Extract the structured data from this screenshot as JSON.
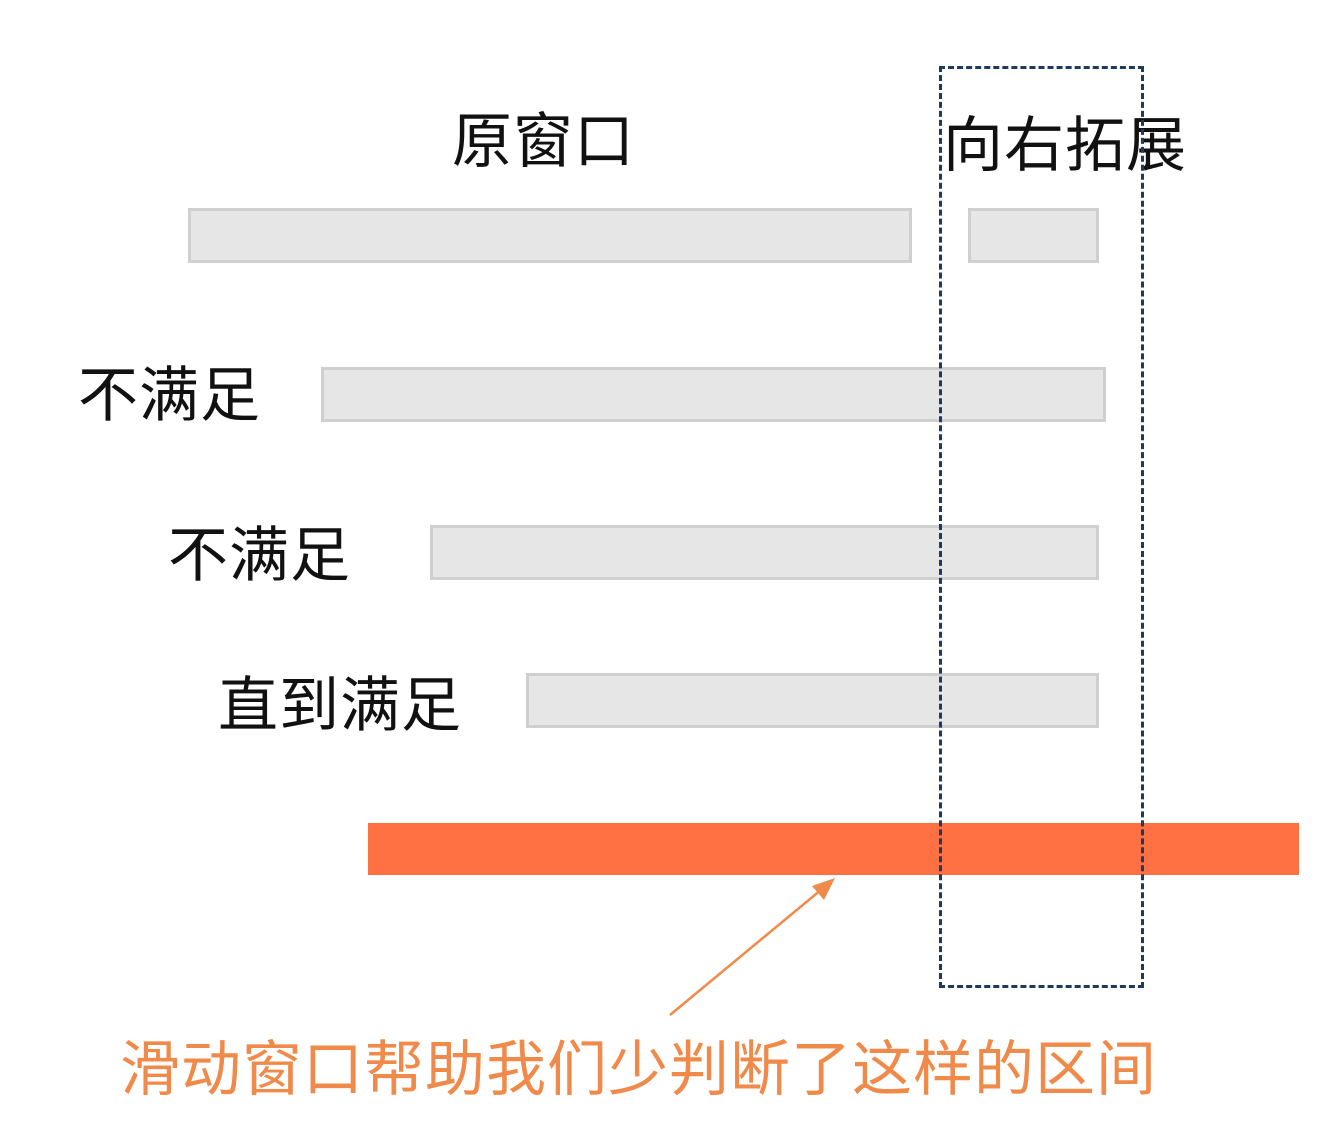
{
  "labels": {
    "original_window": "原窗口",
    "expand_right": "向右拓展",
    "row1": "不满足",
    "row2": "不满足",
    "row3": "直到满足"
  },
  "caption": "滑动窗口帮助我们少判断了这样的区间",
  "colors": {
    "window_bar": "#e6e6e6",
    "window_border": "#cfcfcf",
    "highlight": "#ff7043",
    "caption": "#f08a4b",
    "dashed_box": "#1f3a5f"
  }
}
